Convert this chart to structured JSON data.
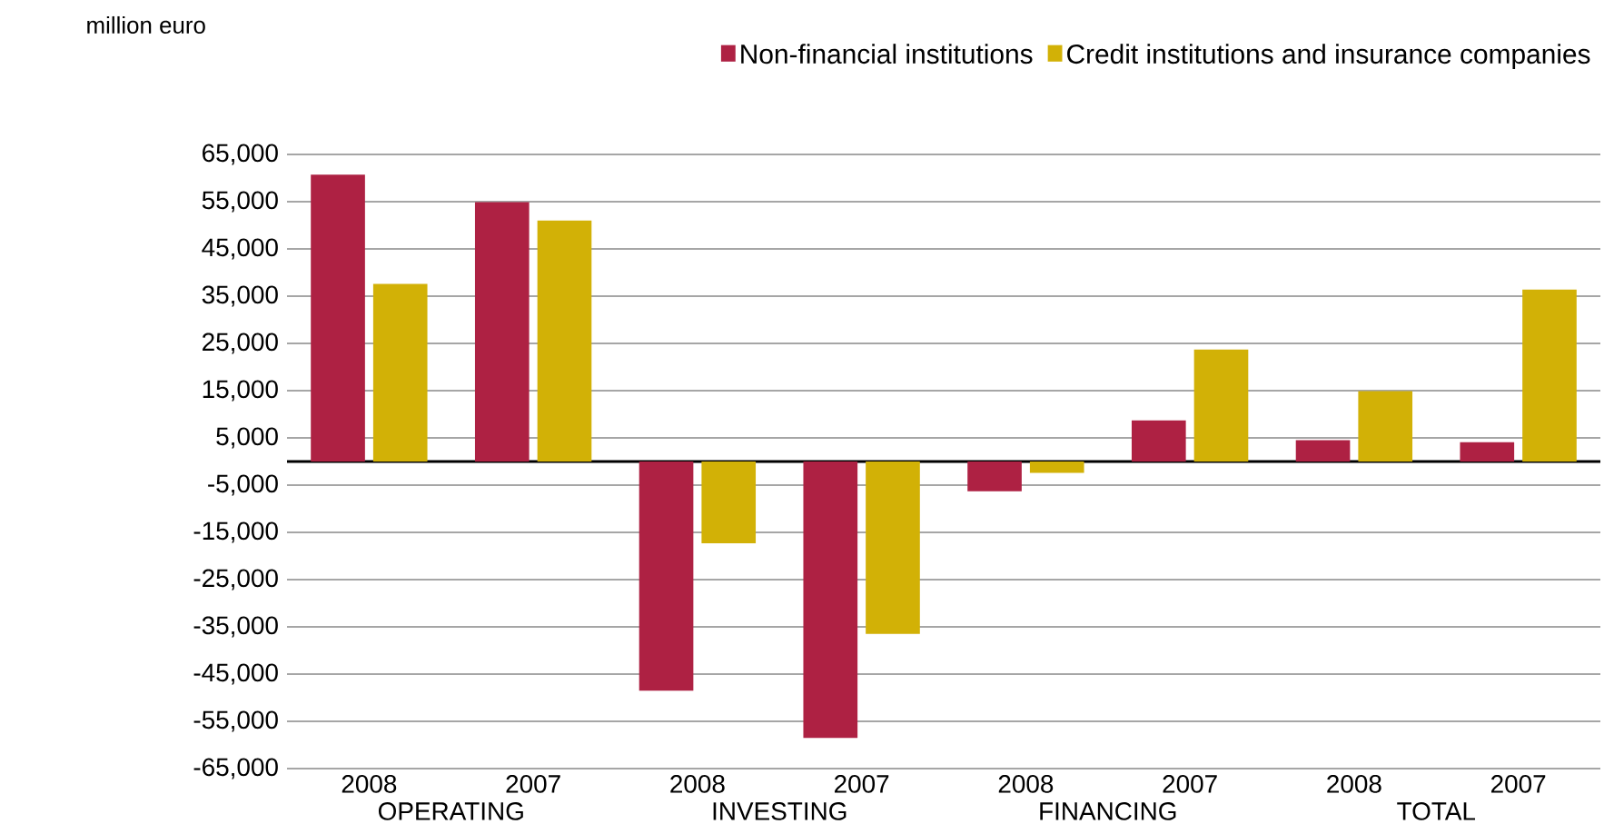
{
  "chart_data": {
    "type": "bar",
    "ylabel": "million euro",
    "categories": [
      "2008",
      "2007",
      "2008",
      "2007",
      "2008",
      "2007",
      "2008",
      "2007"
    ],
    "annotations": [
      "OPERATING",
      "INVESTING",
      "FINANCING",
      "TOTAL"
    ],
    "series": [
      {
        "name": "Non-financial institutions",
        "color": "#ae2143",
        "values": [
          60700,
          54900,
          -48500,
          -58500,
          -6300,
          8700,
          4500,
          4100
        ]
      },
      {
        "name": "Credit institutions and insurance companies",
        "color": "#d2b106",
        "values": [
          37600,
          51000,
          -17300,
          -36500,
          -2400,
          23700,
          14900,
          36400
        ]
      }
    ],
    "ylim": [
      -65000,
      65000
    ],
    "yticks": [
      {
        "value": -65000,
        "label": "-65,000"
      },
      {
        "value": -55000,
        "label": "-55,000"
      },
      {
        "value": -45000,
        "label": "-45,000"
      },
      {
        "value": -35000,
        "label": "-35,000"
      },
      {
        "value": -25000,
        "label": "-25,000"
      },
      {
        "value": -15000,
        "label": "-15,000"
      },
      {
        "value": -5000,
        "label": "-5,000"
      },
      {
        "value": 5000,
        "label": "5,000"
      },
      {
        "value": 15000,
        "label": "15,000"
      },
      {
        "value": 25000,
        "label": "25,000"
      },
      {
        "value": 35000,
        "label": "35,000"
      },
      {
        "value": 45000,
        "label": "45,000"
      },
      {
        "value": 55000,
        "label": "55,000"
      },
      {
        "value": 65000,
        "label": "65,000"
      }
    ],
    "grid": "y",
    "legend": "top right"
  }
}
